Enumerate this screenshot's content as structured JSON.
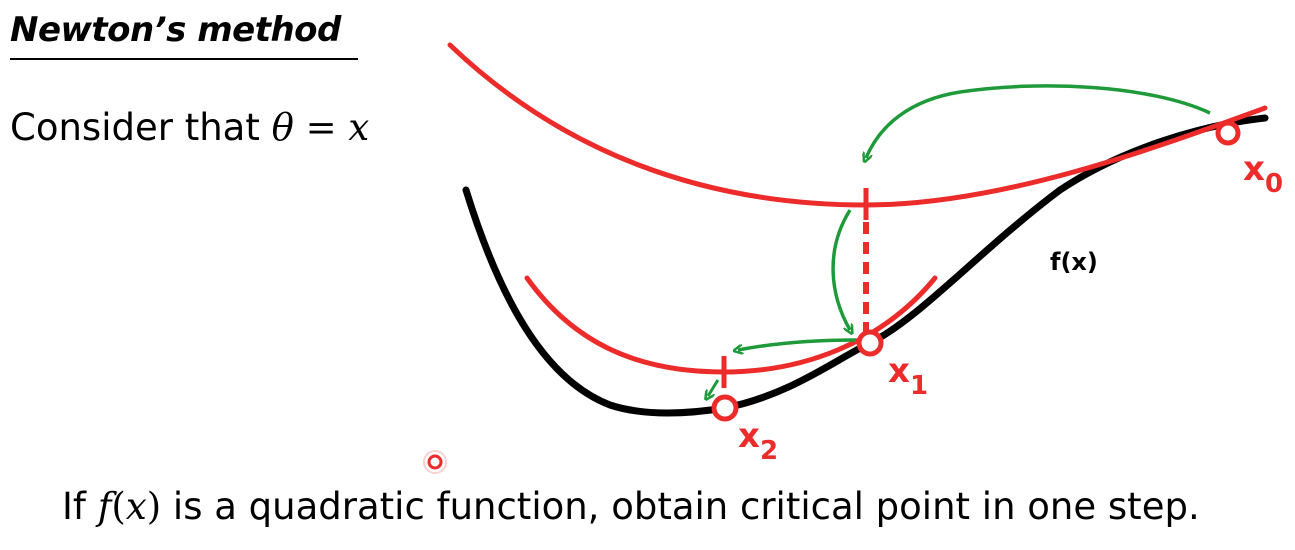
{
  "slide": {
    "title": "Newton’s method",
    "consider": {
      "prefix": "Consider that ",
      "theta": "θ",
      "equals": " = ",
      "x": "x"
    },
    "footer": {
      "if": "If ",
      "f": "f",
      "lparen": "(",
      "x": "x",
      "rparen": ")",
      "rest": " is a quadratic function, obtain critical point in one step."
    }
  },
  "diagram": {
    "curve_label": "f(x)",
    "points": [
      {
        "name": "x0",
        "main": "x",
        "sub": "0"
      },
      {
        "name": "x1",
        "main": "x",
        "sub": "1"
      },
      {
        "name": "x2",
        "main": "x",
        "sub": "2"
      }
    ],
    "colors": {
      "function": "#000000",
      "approximation": "#ec2b2b",
      "arrows": "#1f9a3a"
    }
  }
}
